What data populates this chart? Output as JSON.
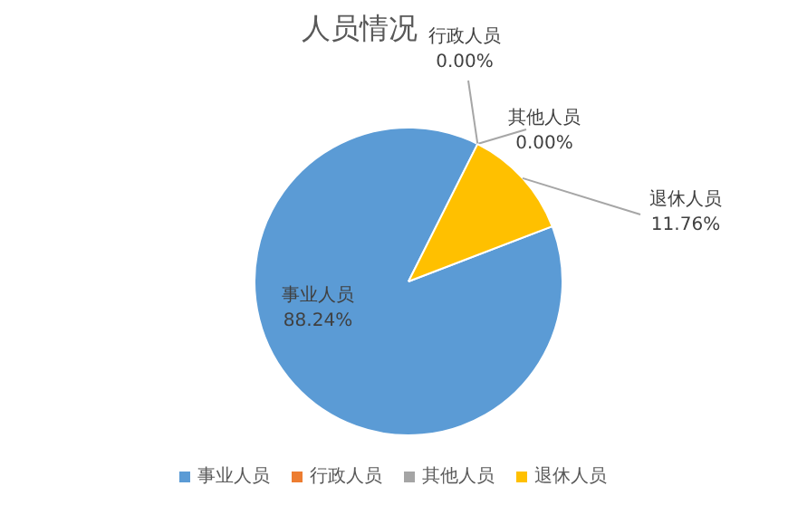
{
  "chart_data": {
    "type": "pie",
    "title": "人员情况",
    "categories": [
      "事业人员",
      "行政人员",
      "其他人员",
      "退休人员"
    ],
    "values": [
      88.24,
      0.0,
      0.0,
      11.76
    ],
    "colors": [
      "#5b9bd5",
      "#ed7d31",
      "#a5a5a5",
      "#ffc000"
    ],
    "value_labels": [
      "88.24%",
      "0.00%",
      "0.00%",
      "11.76%"
    ],
    "legend": "bottom"
  }
}
